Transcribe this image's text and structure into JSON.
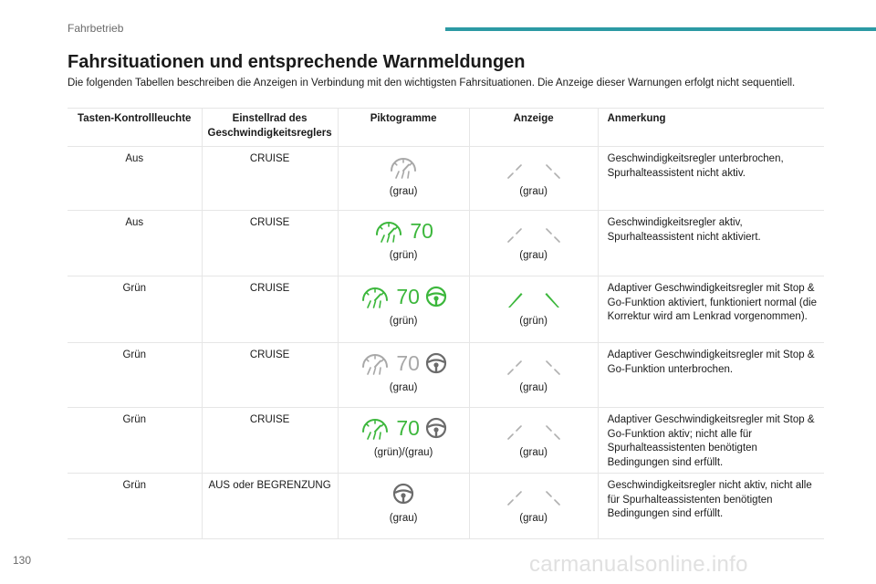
{
  "header": {
    "section": "Fahrbetrieb",
    "accent_color": "#2c9aa4"
  },
  "title": "Fahrsituationen und entsprechende Warnmeldungen",
  "intro": "Die folgenden Tabellen beschreiben die Anzeigen in Verbindung mit den wichtigsten Fahrsituationen. Die Anzeige dieser Warnungen erfolgt nicht sequentiell.",
  "table": {
    "headers": [
      "Tasten-Kontrollleuchte",
      "Einstellrad des Geschwindigkeitsreglers",
      "Piktogramme",
      "Anzeige",
      "Anmerkung"
    ],
    "rows": [
      {
        "button": "Aus",
        "wheel": "CRUISE",
        "speed": "",
        "picto_label": "(grau)",
        "display_label": "(grau)",
        "remark": "Geschwindigkeitsregler unterbrochen, Spurhalteassistent nicht aktiv."
      },
      {
        "button": "Aus",
        "wheel": "CRUISE",
        "speed": "70",
        "picto_label": "(grün)",
        "display_label": "(grau)",
        "remark": "Geschwindigkeitsregler aktiv, Spurhalteassistent nicht aktiviert."
      },
      {
        "button": "Grün",
        "wheel": "CRUISE",
        "speed": "70",
        "picto_label": "(grün)",
        "display_label": "(grün)",
        "remark": "Adaptiver Geschwindigkeitsregler mit Stop & Go-Funktion aktiviert, funktioniert normal (die Korrektur wird am Lenkrad vorgenommen)."
      },
      {
        "button": "Grün",
        "wheel": "CRUISE",
        "speed": "70",
        "picto_label": "(grau)",
        "display_label": "(grau)",
        "remark": "Adaptiver Geschwindigkeitsregler mit Stop & Go-Funktion unterbrochen."
      },
      {
        "button": "Grün",
        "wheel": "CRUISE",
        "speed": "70",
        "picto_label": "(grün)/(grau)",
        "display_label": "(grau)",
        "remark": "Adaptiver Geschwindigkeitsregler mit Stop & Go-Funktion aktiv; nicht alle für Spurhalteassistenten benötigten Bedingungen sind erfüllt."
      },
      {
        "button": "Grün",
        "wheel": "AUS oder BEGRENZUNG",
        "speed": "",
        "picto_label": "(grau)",
        "display_label": "(grau)",
        "remark": "Geschwindigkeitsregler nicht aktiv, nicht alle für Spurhalteassistenten benötigten Bedingungen sind erfüllt."
      }
    ]
  },
  "icons": {
    "speedometer": "speedometer-icon",
    "steering_wheel": "steering-wheel-icon",
    "lane_lines": "lane-lines-icon"
  },
  "colors": {
    "green": "#3cb73c",
    "grey": "#a8a8a8",
    "dark_grey": "#6b6b6b"
  },
  "footer": {
    "page_number": "130",
    "watermark": "carmanualsonline.info"
  }
}
